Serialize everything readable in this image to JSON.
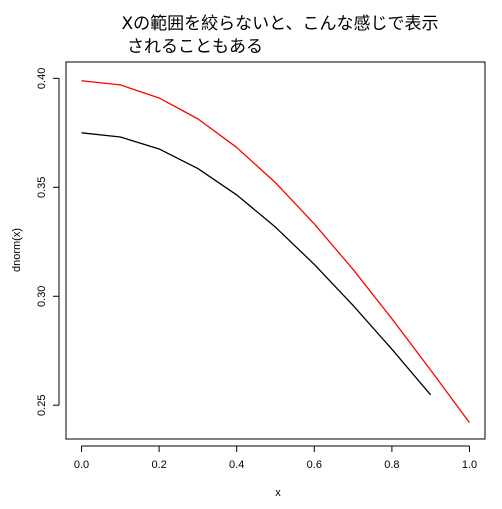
{
  "chart_data": {
    "type": "line",
    "title_lines": [
      "Xの範囲を絞らないと、こんな感じで表示",
      "されることもある"
    ],
    "xlabel": "x",
    "ylabel": "dnorm(x)",
    "xlim": [
      -0.04,
      1.04
    ],
    "ylim": [
      0.2345,
      0.4075
    ],
    "x_ticks": [
      0.0,
      0.2,
      0.4,
      0.6,
      0.8,
      1.0
    ],
    "x_tick_labels": [
      "0.0",
      "0.2",
      "0.4",
      "0.6",
      "0.8",
      "1.0"
    ],
    "y_ticks": [
      0.25,
      0.3,
      0.35,
      0.4
    ],
    "y_tick_labels": [
      "0.25",
      "0.30",
      "0.35",
      "0.40"
    ],
    "grid": false,
    "series": [
      {
        "color": "#000000",
        "x": [
          0.0,
          0.1,
          0.2,
          0.3,
          0.4,
          0.5,
          0.6,
          0.7,
          0.8,
          0.9
        ],
        "y": [
          0.375,
          0.3731,
          0.3676,
          0.3586,
          0.3465,
          0.3317,
          0.3146,
          0.2958,
          0.2757,
          0.2547
        ]
      },
      {
        "color": "#ff0000",
        "x": [
          0.0,
          0.1,
          0.2,
          0.3,
          0.4,
          0.5,
          0.6,
          0.7,
          0.8,
          0.9,
          1.0
        ],
        "y": [
          0.3989,
          0.397,
          0.391,
          0.3814,
          0.3683,
          0.3521,
          0.3332,
          0.3123,
          0.2897,
          0.2661,
          0.242
        ]
      }
    ]
  }
}
